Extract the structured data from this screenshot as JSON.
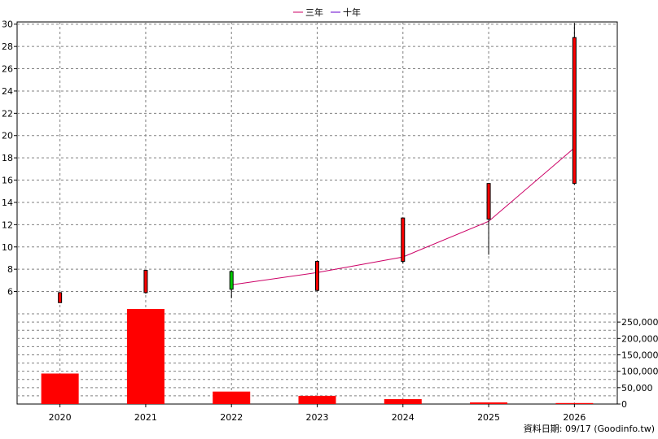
{
  "chart_data": [
    {
      "type": "candlestick",
      "categories": [
        "2020",
        "2021",
        "2022",
        "2023",
        "2024",
        "2025",
        "2026"
      ],
      "ylim": [
        4.8,
        30.2
      ],
      "y_ticks": [
        6,
        8,
        10,
        12,
        14,
        16,
        18,
        20,
        22,
        24,
        26,
        28,
        30
      ],
      "grid": true,
      "legend_position": "top-center",
      "candles": [
        {
          "x": "2020",
          "open": 5.0,
          "close": 5.9,
          "high": 5.9,
          "low": 5.0
        },
        {
          "x": "2021",
          "open": 5.9,
          "close": 7.9,
          "high": 7.9,
          "low": 5.8
        },
        {
          "x": "2022",
          "open": 7.8,
          "close": 6.2,
          "high": 7.9,
          "low": 5.4
        },
        {
          "x": "2023",
          "open": 6.1,
          "close": 8.7,
          "high": 8.8,
          "low": 6.0
        },
        {
          "x": "2024",
          "open": 8.7,
          "close": 12.6,
          "high": 12.6,
          "low": 8.5
        },
        {
          "x": "2025",
          "open": 12.5,
          "close": 15.7,
          "high": 15.7,
          "low": 9.3
        },
        {
          "x": "2026",
          "open": 15.7,
          "close": 28.8,
          "high": 30.1,
          "low": 15.6
        }
      ],
      "series": [
        {
          "name": "三年",
          "color": "#cc0066",
          "points": [
            {
              "x": "2022",
              "y": 6.6
            },
            {
              "x": "2023",
              "y": 7.7
            },
            {
              "x": "2024",
              "y": 9.1
            },
            {
              "x": "2025",
              "y": 12.3
            },
            {
              "x": "2026",
              "y": 18.9
            }
          ]
        },
        {
          "name": "十年",
          "color": "#6600cc",
          "points": []
        }
      ]
    },
    {
      "type": "bar",
      "categories": [
        "2020",
        "2021",
        "2022",
        "2023",
        "2024",
        "2025",
        "2026"
      ],
      "values": [
        93000,
        290000,
        38000,
        25000,
        15000,
        5000,
        3000
      ],
      "ylim": [
        0,
        290000
      ],
      "y_ticks": [
        0,
        50000,
        100000,
        150000,
        200000,
        250000
      ],
      "y_tick_labels": [
        "0",
        "50,000",
        "100,000",
        "150,000",
        "200,000",
        "250,000"
      ],
      "color": "#ff0000",
      "grid": true
    }
  ],
  "footer": "資料日期: 09/17   (Goodinfo.tw)",
  "colors": {
    "up": "#ff0000",
    "down": "#00cc00",
    "grid": "#808080",
    "border": "#000000"
  }
}
